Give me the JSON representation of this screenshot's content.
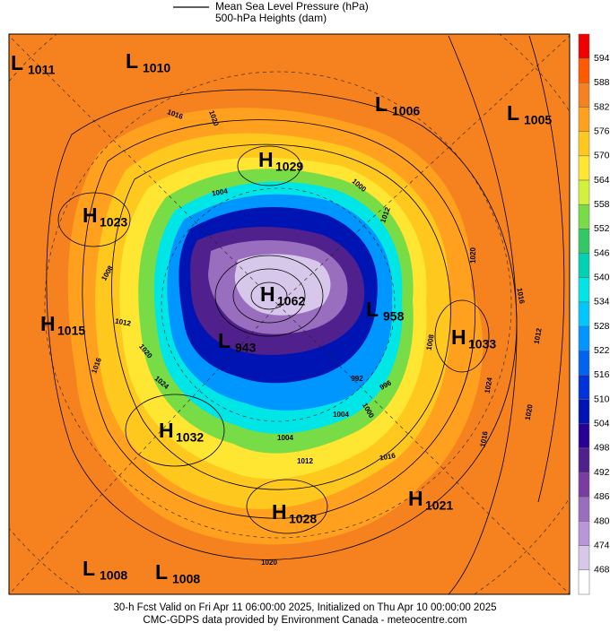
{
  "legend": {
    "line1": "Mean Sea Level Pressure (hPa)",
    "line2": "500-hPa Heights (dam)"
  },
  "colorbar": {
    "ticks": [
      594,
      588,
      582,
      576,
      570,
      564,
      558,
      552,
      546,
      540,
      534,
      528,
      522,
      516,
      510,
      504,
      498,
      492,
      486,
      480,
      474,
      468
    ],
    "colors": [
      "#f00000",
      "#ff5a00",
      "#f5821e",
      "#ffa01e",
      "#ffc81e",
      "#ffe632",
      "#d2f03c",
      "#78dc46",
      "#32c864",
      "#00d2b4",
      "#00e6e6",
      "#00c8ff",
      "#0096ff",
      "#0064f0",
      "#0032dc",
      "#0014b4",
      "#280096",
      "#50208c",
      "#7a3ca0",
      "#9a6ebe",
      "#b996d7",
      "#d7c8eb",
      "#ffffff"
    ]
  },
  "centers": [
    {
      "type": "L",
      "value": 1011
    },
    {
      "type": "L",
      "value": 1010
    },
    {
      "type": "L",
      "value": 1006
    },
    {
      "type": "L",
      "value": 1005
    },
    {
      "type": "H",
      "value": 1029
    },
    {
      "type": "H",
      "value": 1023
    },
    {
      "type": "H",
      "value": 1062
    },
    {
      "type": "L",
      "value": 958
    },
    {
      "type": "H",
      "value": 1015
    },
    {
      "type": "H",
      "value": 1033
    },
    {
      "type": "L",
      "value": 943
    },
    {
      "type": "H",
      "value": 1032
    },
    {
      "type": "H",
      "value": 1021
    },
    {
      "type": "H",
      "value": 1028
    },
    {
      "type": "L",
      "value": 1008
    },
    {
      "type": "L",
      "value": 1008
    }
  ],
  "contour_labels": [
    1016,
    1020,
    1004,
    1012,
    1008,
    1016,
    1020,
    1024,
    1004,
    1012,
    1016,
    1000,
    1004,
    992,
    996,
    1020,
    1024,
    1020,
    1016,
    1012,
    1016,
    1020,
    1008,
    1012,
    1000
  ],
  "footer": {
    "line1": "30-h Fcst Valid on Fri Apr 11 06:00:00 2025, Initialized on Thu Apr 10 00:00:00 2025",
    "line2": "CMC-GDPS data provided by Environment Canada - meteocentre.com"
  }
}
